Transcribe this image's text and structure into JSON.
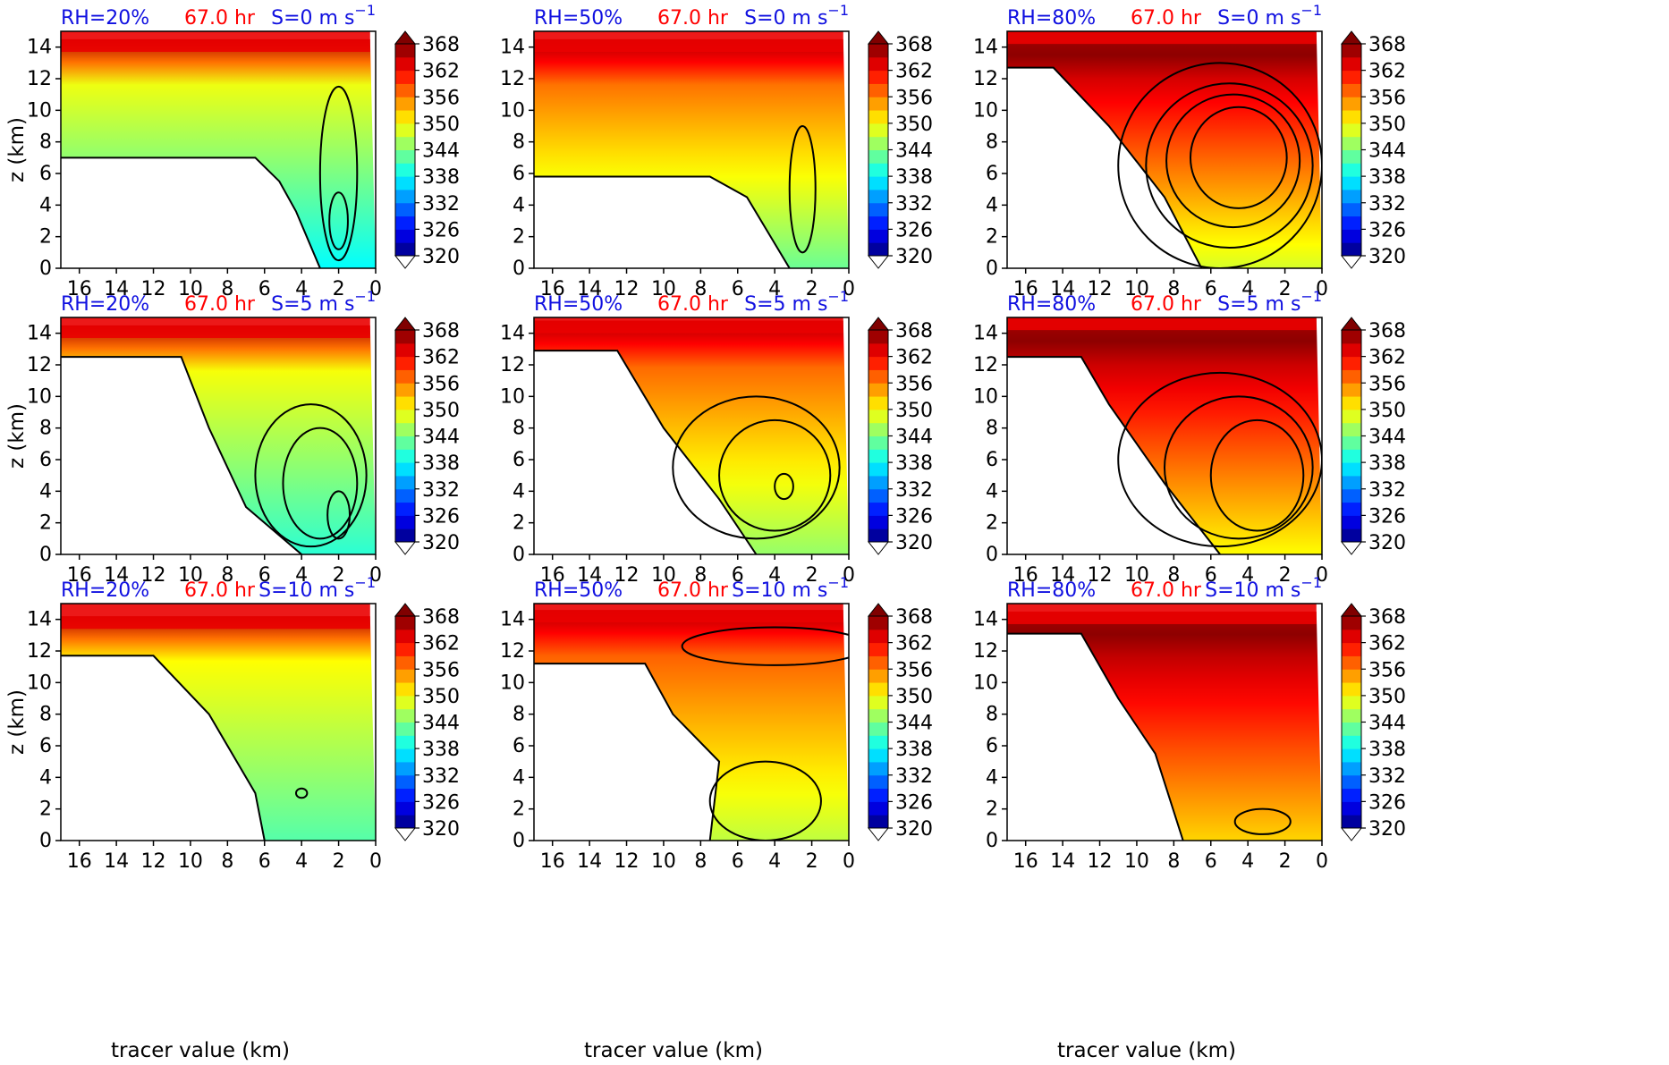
{
  "figure": {
    "x_axis_label": "tracer value (km)",
    "y_axis_label": "z (km)",
    "time_label": "67.0 hr",
    "colors": {
      "rh_label": "#1010e0",
      "shear_label": "#1010e0",
      "time_label": "#ff0000"
    },
    "colormap": "jet"
  },
  "chart_data": [
    {
      "type": "heatmap",
      "rh": "RH=20%",
      "time": "67.0 hr",
      "shear": "S=0 m s",
      "shear_exp": "−1",
      "xlim": [
        17,
        0
      ],
      "ylim": [
        0,
        15
      ],
      "fill_top": 14.5,
      "lower_boundary": [
        [
          17,
          7.0
        ],
        [
          6.5,
          7.0
        ],
        [
          5.2,
          5.5
        ],
        [
          4.3,
          3.6
        ],
        [
          3.0,
          0.0
        ]
      ],
      "contour_levels": [
        {
          "center": [
            2.0,
            6.0
          ],
          "rx": 1.0,
          "ry": 5.5
        },
        {
          "center": [
            2.0,
            3.0
          ],
          "rx": 0.5,
          "ry": 1.8
        }
      ]
    },
    {
      "type": "heatmap",
      "rh": "RH=50%",
      "time": "67.0 hr",
      "shear": "S=0 m s",
      "shear_exp": "−1",
      "xlim": [
        17,
        0
      ],
      "ylim": [
        0,
        15
      ],
      "fill_top": 14.5,
      "lower_boundary": [
        [
          17,
          5.8
        ],
        [
          7.5,
          5.8
        ],
        [
          5.5,
          4.5
        ],
        [
          3.2,
          0.0
        ]
      ],
      "contour_levels": [
        {
          "center": [
            2.5,
            5.0
          ],
          "rx": 0.7,
          "ry": 4.0
        }
      ]
    },
    {
      "type": "heatmap",
      "rh": "RH=80%",
      "time": "67.0 hr",
      "shear": "S=0 m s",
      "shear_exp": "−1",
      "xlim": [
        17,
        0
      ],
      "ylim": [
        0,
        15
      ],
      "fill_top": 15.0,
      "lower_boundary": [
        [
          17,
          12.7
        ],
        [
          14.5,
          12.7
        ],
        [
          11.5,
          9.0
        ],
        [
          8.5,
          4.5
        ],
        [
          6.5,
          0.0
        ]
      ],
      "contour_levels": [
        {
          "center": [
            5.5,
            6.5
          ],
          "rx": 5.5,
          "ry": 6.5
        },
        {
          "center": [
            5.0,
            6.5
          ],
          "rx": 4.5,
          "ry": 5.2
        },
        {
          "center": [
            4.8,
            6.8
          ],
          "rx": 3.6,
          "ry": 4.2
        },
        {
          "center": [
            4.5,
            7.0
          ],
          "rx": 2.6,
          "ry": 3.2
        }
      ]
    },
    {
      "type": "heatmap",
      "rh": "RH=20%",
      "time": "67.0 hr",
      "shear": "S=5 m s",
      "shear_exp": "−1",
      "xlim": [
        17,
        0
      ],
      "ylim": [
        0,
        15
      ],
      "fill_top": 14.5,
      "lower_boundary": [
        [
          17,
          12.5
        ],
        [
          10.5,
          12.5
        ],
        [
          9.0,
          8.0
        ],
        [
          7.0,
          3.0
        ],
        [
          4.0,
          0.0
        ]
      ],
      "contour_levels": [
        {
          "center": [
            3.5,
            5.0
          ],
          "rx": 3.0,
          "ry": 4.5
        },
        {
          "center": [
            3.0,
            4.5
          ],
          "rx": 2.0,
          "ry": 3.5
        },
        {
          "center": [
            2.0,
            2.5
          ],
          "rx": 0.6,
          "ry": 1.5
        }
      ]
    },
    {
      "type": "heatmap",
      "rh": "RH=50%",
      "time": "67.0 hr",
      "shear": "S=5 m s",
      "shear_exp": "−1",
      "xlim": [
        17,
        0
      ],
      "ylim": [
        0,
        15
      ],
      "fill_top": 14.8,
      "lower_boundary": [
        [
          17,
          12.9
        ],
        [
          12.5,
          12.9
        ],
        [
          10.0,
          8.0
        ],
        [
          7.0,
          3.5
        ],
        [
          5.0,
          0.0
        ]
      ],
      "contour_levels": [
        {
          "center": [
            5.0,
            5.5
          ],
          "rx": 4.5,
          "ry": 4.5
        },
        {
          "center": [
            4.0,
            5.0
          ],
          "rx": 3.0,
          "ry": 3.5
        },
        {
          "center": [
            3.5,
            4.3
          ],
          "rx": 0.5,
          "ry": 0.8
        }
      ]
    },
    {
      "type": "heatmap",
      "rh": "RH=80%",
      "time": "67.0 hr",
      "shear": "S=5 m s",
      "shear_exp": "−1",
      "xlim": [
        17,
        0
      ],
      "ylim": [
        0,
        15
      ],
      "fill_top": 15.0,
      "lower_boundary": [
        [
          17,
          12.5
        ],
        [
          13.0,
          12.5
        ],
        [
          11.5,
          9.5
        ],
        [
          8.5,
          4.5
        ],
        [
          5.5,
          0.0
        ]
      ],
      "contour_levels": [
        {
          "center": [
            5.5,
            6.0
          ],
          "rx": 5.5,
          "ry": 5.5
        },
        {
          "center": [
            4.5,
            5.5
          ],
          "rx": 4.0,
          "ry": 4.5
        },
        {
          "center": [
            3.5,
            5.0
          ],
          "rx": 2.5,
          "ry": 3.5
        }
      ]
    },
    {
      "type": "heatmap",
      "rh": "RH=20%",
      "time": "67.0 hr",
      "shear": "S=10 m s",
      "shear_exp": "−1",
      "xlim": [
        17,
        0
      ],
      "ylim": [
        0,
        15
      ],
      "fill_top": 14.2,
      "lower_boundary": [
        [
          17,
          11.7
        ],
        [
          12.0,
          11.7
        ],
        [
          9.0,
          8.0
        ],
        [
          6.5,
          3.0
        ],
        [
          6.0,
          0.0
        ]
      ],
      "contour_levels": [
        {
          "center": [
            4.0,
            3.0
          ],
          "rx": 0.3,
          "ry": 0.3
        }
      ]
    },
    {
      "type": "heatmap",
      "rh": "RH=50%",
      "time": "67.0 hr",
      "shear": "S=10 m s",
      "shear_exp": "−1",
      "xlim": [
        17,
        0
      ],
      "ylim": [
        0,
        15
      ],
      "fill_top": 14.6,
      "lower_boundary": [
        [
          17,
          11.2
        ],
        [
          11.0,
          11.2
        ],
        [
          9.5,
          8.0
        ],
        [
          7.0,
          5.0
        ],
        [
          7.5,
          0.0
        ]
      ],
      "contour_levels": [
        {
          "center": [
            4.5,
            2.5
          ],
          "rx": 3.0,
          "ry": 2.5
        },
        {
          "center": [
            4.0,
            12.3
          ],
          "rx": 5.0,
          "ry": 1.2
        }
      ]
    },
    {
      "type": "heatmap",
      "rh": "RH=80%",
      "time": "67.0 hr",
      "shear": "S=10 m s",
      "shear_exp": "−1",
      "xlim": [
        17,
        0
      ],
      "ylim": [
        0,
        15
      ],
      "fill_top": 14.5,
      "lower_boundary": [
        [
          17,
          13.1
        ],
        [
          13.0,
          13.1
        ],
        [
          11.0,
          9.0
        ],
        [
          9.0,
          5.5
        ],
        [
          7.5,
          0.0
        ]
      ],
      "contour_levels": [
        {
          "center": [
            3.2,
            1.2
          ],
          "rx": 1.5,
          "ry": 0.8
        }
      ]
    }
  ],
  "colorbar": {
    "min": 320,
    "max": 368,
    "ticks": [
      "368",
      "362",
      "356",
      "350",
      "344",
      "338",
      "332",
      "326",
      "320"
    ],
    "extend": "both"
  },
  "axes": {
    "x_ticks": [
      "16",
      "14",
      "12",
      "10",
      "8",
      "6",
      "4",
      "2",
      "0"
    ],
    "y_ticks": [
      "0",
      "2",
      "4",
      "6",
      "8",
      "10",
      "12",
      "14"
    ]
  }
}
